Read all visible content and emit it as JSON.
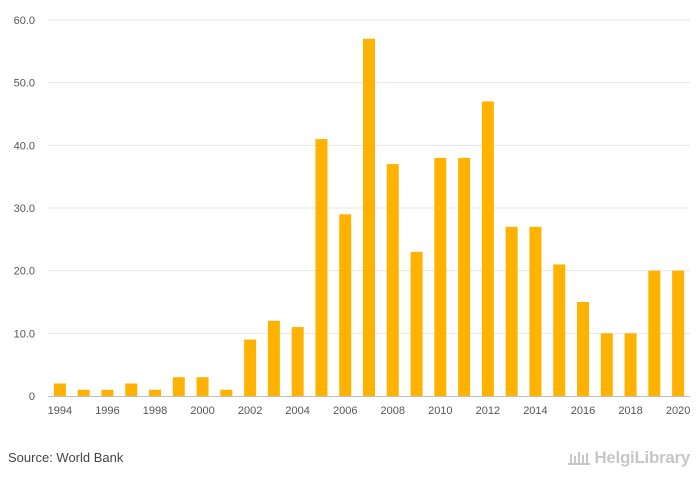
{
  "chart_data": {
    "type": "bar",
    "categories": [
      "1994",
      "1995",
      "1996",
      "1997",
      "1998",
      "1999",
      "2000",
      "2001",
      "2002",
      "2003",
      "2004",
      "2005",
      "2006",
      "2007",
      "2008",
      "2009",
      "2010",
      "2011",
      "2012",
      "2013",
      "2014",
      "2015",
      "2016",
      "2017",
      "2018",
      "2019",
      "2020"
    ],
    "values": [
      2,
      1,
      1,
      2,
      1,
      3,
      3,
      1,
      9,
      12,
      11,
      41,
      29,
      57,
      37,
      23,
      38,
      38,
      47,
      27,
      27,
      21,
      15,
      10,
      10,
      20,
      20
    ],
    "x_tick_labels": [
      "1994",
      "1996",
      "1998",
      "2000",
      "2002",
      "2004",
      "2006",
      "2008",
      "2010",
      "2012",
      "2014",
      "2016",
      "2018",
      "2020"
    ],
    "y_tick_labels": [
      "0",
      "10.0",
      "20.0",
      "30.0",
      "40.0",
      "50.0",
      "60.0"
    ],
    "ylim": [
      0,
      60
    ],
    "title": "",
    "xlabel": "",
    "ylabel": "",
    "grid": "horizontal",
    "legend": "none",
    "bar_color": "#FFB300"
  },
  "footer": {
    "source": "Source: World Bank"
  },
  "logo": {
    "text": "HelgiLibrary",
    "icon": "library-building-icon"
  }
}
